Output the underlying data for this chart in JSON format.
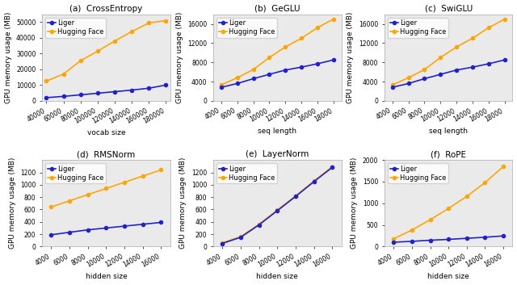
{
  "subplots": [
    {
      "title": "(a)  CrossEntropy",
      "xlabel": "vocab size",
      "ylabel": "GPU memory usage (MB)",
      "liger_x": [
        40000,
        60000,
        80000,
        100000,
        120000,
        140000,
        160000,
        180000
      ],
      "liger_y": [
        2000,
        2800,
        3800,
        4800,
        5800,
        6800,
        8000,
        10000
      ],
      "hf_x": [
        40000,
        60000,
        80000,
        100000,
        120000,
        140000,
        160000,
        180000
      ],
      "hf_y": [
        12500,
        17000,
        25500,
        31500,
        38000,
        44000,
        49500,
        51000
      ],
      "ylim": [
        0,
        55000
      ],
      "xlim": [
        35000,
        185000
      ],
      "xticks": [
        40000,
        60000,
        80000,
        100000,
        120000,
        140000,
        160000,
        180000
      ],
      "xtick_labels": [
        "40000",
        "60000",
        "80000",
        "100000",
        "120000",
        "140000",
        "160000",
        "180000"
      ],
      "yticks": [
        0,
        10000,
        20000,
        30000,
        40000,
        50000
      ],
      "ytick_labels": [
        "0",
        "10000",
        "20000",
        "30000",
        "40000",
        "50000"
      ]
    },
    {
      "title": "(b)  GeGLU",
      "xlabel": "seq length",
      "ylabel": "GPU memory usage (MB)",
      "liger_x": [
        4000,
        6000,
        8000,
        10000,
        12000,
        14000,
        16000,
        18000
      ],
      "liger_y": [
        2800,
        3600,
        4600,
        5500,
        6400,
        7000,
        7700,
        8500
      ],
      "hf_x": [
        4000,
        6000,
        8000,
        10000,
        12000,
        14000,
        16000,
        18000
      ],
      "hf_y": [
        3300,
        4800,
        6500,
        9000,
        11200,
        13000,
        15200,
        17000
      ],
      "ylim": [
        0,
        18000
      ],
      "xlim": [
        3000,
        19000
      ],
      "xticks": [
        4000,
        6000,
        8000,
        10000,
        12000,
        14000,
        16000,
        18000
      ],
      "xtick_labels": [
        "4000",
        "6000",
        "8000",
        "10000",
        "12000",
        "14000",
        "16000",
        "18000"
      ],
      "yticks": [
        0,
        4000,
        8000,
        12000,
        16000
      ],
      "ytick_labels": [
        "0",
        "4000",
        "8000",
        "12000",
        "16000"
      ]
    },
    {
      "title": "(c)  SwiGLU",
      "xlabel": "seq length",
      "ylabel": "GPU memory usage (MB)",
      "liger_x": [
        4000,
        6000,
        8000,
        10000,
        12000,
        14000,
        16000,
        18000
      ],
      "liger_y": [
        2800,
        3600,
        4600,
        5500,
        6400,
        7000,
        7700,
        8500
      ],
      "hf_x": [
        4000,
        6000,
        8000,
        10000,
        12000,
        14000,
        16000,
        18000
      ],
      "hf_y": [
        3300,
        4800,
        6500,
        9000,
        11200,
        13000,
        15200,
        17000
      ],
      "ylim": [
        0,
        18000
      ],
      "xlim": [
        3000,
        19000
      ],
      "xticks": [
        4000,
        6000,
        8000,
        10000,
        12000,
        14000,
        16000,
        18000
      ],
      "xtick_labels": [
        "4000",
        "6000",
        "8000",
        "10000",
        "12000",
        "14000",
        "16000",
        "18000"
      ],
      "yticks": [
        0,
        4000,
        8000,
        12000,
        16000
      ],
      "ytick_labels": [
        "0",
        "4000",
        "8000",
        "12000",
        "16000"
      ]
    },
    {
      "title": "(d)  RMSNorm",
      "xlabel": "hidden size",
      "ylabel": "GPU memory usage (MB)",
      "liger_x": [
        4000,
        6000,
        8000,
        10000,
        12000,
        14000,
        16000
      ],
      "liger_y": [
        190,
        230,
        270,
        300,
        330,
        360,
        390
      ],
      "hf_x": [
        4000,
        6000,
        8000,
        10000,
        12000,
        14000,
        16000
      ],
      "hf_y": [
        640,
        740,
        840,
        940,
        1040,
        1140,
        1240
      ],
      "ylim": [
        0,
        1400
      ],
      "xlim": [
        3000,
        17000
      ],
      "xticks": [
        4000,
        6000,
        8000,
        10000,
        12000,
        14000,
        16000
      ],
      "xtick_labels": [
        "4000",
        "6000",
        "8000",
        "10000",
        "12000",
        "14000",
        "16000"
      ],
      "yticks": [
        0,
        200,
        400,
        600,
        800,
        1000,
        1200
      ],
      "ytick_labels": [
        "0",
        "200",
        "400",
        "600",
        "800",
        "1000",
        "1200"
      ]
    },
    {
      "title": "(e)  LayerNorm",
      "xlabel": "hidden size",
      "ylabel": "GPU memory usage (MB)",
      "liger_x": [
        4000,
        6000,
        8000,
        10000,
        12000,
        14000,
        16000
      ],
      "liger_y": [
        50,
        150,
        350,
        580,
        810,
        1050,
        1280
      ],
      "hf_x": [
        4000,
        6000,
        8000,
        10000,
        12000,
        14000,
        16000
      ],
      "hf_y": [
        60,
        160,
        360,
        590,
        820,
        1060,
        1290
      ],
      "ylim": [
        0,
        1400
      ],
      "xlim": [
        3000,
        17000
      ],
      "xticks": [
        4000,
        6000,
        8000,
        10000,
        12000,
        14000,
        16000
      ],
      "xtick_labels": [
        "4000",
        "6000",
        "8000",
        "10000",
        "12000",
        "14000",
        "16000"
      ],
      "yticks": [
        0,
        200,
        400,
        600,
        800,
        1000,
        1200
      ],
      "ytick_labels": [
        "0",
        "200",
        "400",
        "600",
        "800",
        "1000",
        "1200"
      ]
    },
    {
      "title": "(f)  RoPE",
      "xlabel": "hidden size",
      "ylabel": "GPU memory usage (MB)",
      "liger_x": [
        4000,
        6000,
        8000,
        10000,
        12000,
        14000,
        16000
      ],
      "liger_y": [
        100,
        120,
        145,
        165,
        190,
        215,
        245
      ],
      "hf_x": [
        4000,
        6000,
        8000,
        10000,
        12000,
        14000,
        16000
      ],
      "hf_y": [
        180,
        380,
        620,
        880,
        1160,
        1480,
        1850
      ],
      "ylim": [
        0,
        2000
      ],
      "xlim": [
        3000,
        17000
      ],
      "xticks": [
        4000,
        6000,
        8000,
        10000,
        12000,
        14000,
        16000
      ],
      "xtick_labels": [
        "4000",
        "6000",
        "8000",
        "10000",
        "12000",
        "14000",
        "16000"
      ],
      "yticks": [
        0,
        500,
        1000,
        1500,
        2000
      ],
      "ytick_labels": [
        "0",
        "500",
        "1000",
        "1500",
        "2000"
      ]
    }
  ],
  "liger_color": "#2222cc",
  "hf_color": "#FFA500",
  "liger_label": "Liger",
  "hf_label": "Hugging Face",
  "marker": "o",
  "markersize": 3,
  "linewidth": 1.2,
  "bg_color": "#eaeaea",
  "tick_fontsize": 5.5,
  "label_fontsize": 6.5,
  "title_fontsize": 7.5,
  "legend_fontsize": 6
}
